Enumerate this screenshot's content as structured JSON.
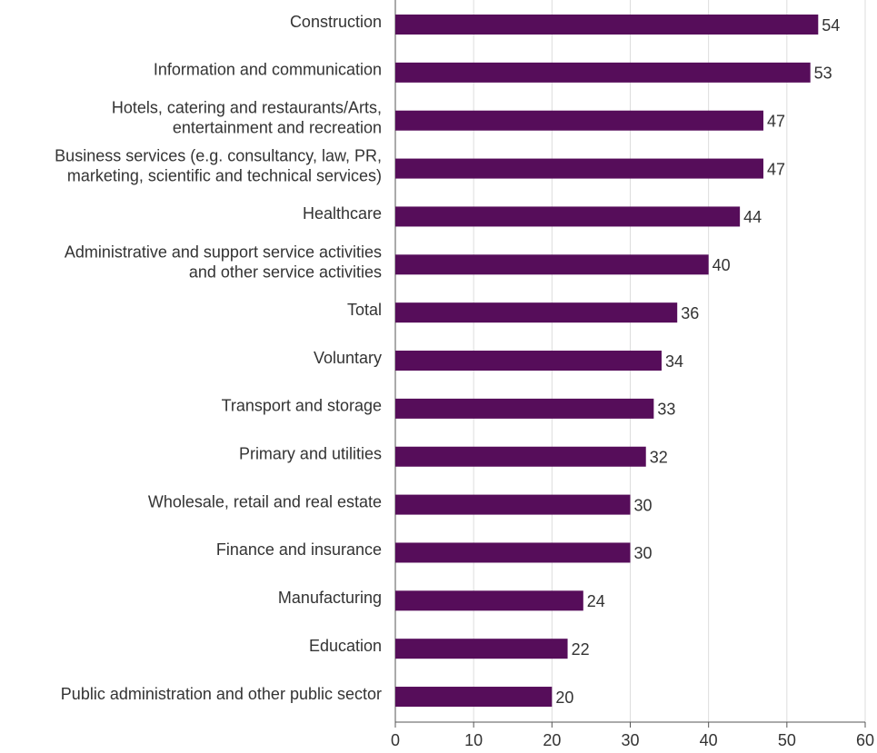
{
  "chart_data": {
    "type": "barh",
    "categories": [
      "Construction",
      "Information and communication",
      "Hotels, catering and restaurants/Arts,\nentertainment and recreation",
      "Business services (e.g. consultancy, law, PR,\nmarketing, scientific and technical services)",
      "Healthcare",
      "Administrative and support service activities\nand other service activities",
      "Total",
      "Voluntary",
      "Transport and storage",
      "Primary and utilities",
      "Wholesale, retail and real estate",
      "Finance and insurance",
      "Manufacturing",
      "Education",
      "Public administration and other public sector"
    ],
    "values": [
      54,
      53,
      47,
      47,
      44,
      40,
      36,
      34,
      33,
      32,
      30,
      30,
      24,
      22,
      20
    ],
    "color": "#560d5a",
    "xlim": [
      0,
      60
    ],
    "xticks": [
      0,
      10,
      20,
      30,
      40,
      50,
      60
    ],
    "grid": true
  }
}
